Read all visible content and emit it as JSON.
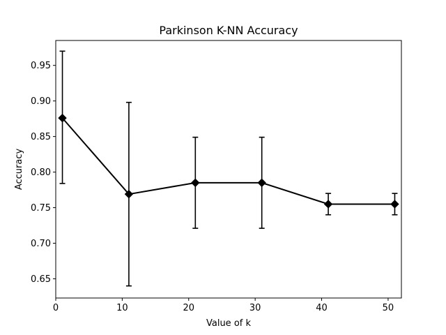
{
  "chart_data": {
    "type": "line",
    "title": "Parkinson K-NN Accuracy",
    "xlabel": "Value of k",
    "ylabel": "Accuracy",
    "xlim": [
      0,
      52
    ],
    "ylim": [
      0.623,
      0.985
    ],
    "xticks": [
      0,
      10,
      20,
      30,
      40,
      50
    ],
    "xtick_labels": [
      "0",
      "10",
      "20",
      "30",
      "40",
      "50"
    ],
    "yticks": [
      0.65,
      0.7,
      0.75,
      0.8,
      0.85,
      0.9,
      0.95
    ],
    "ytick_labels": [
      "0.65",
      "0.70",
      "0.75",
      "0.80",
      "0.85",
      "0.90",
      "0.95"
    ],
    "grid": false,
    "series": [
      {
        "marker": "diamond",
        "color": "#000000",
        "x": [
          1,
          11,
          21,
          31,
          41,
          51
        ],
        "y": [
          0.876,
          0.769,
          0.785,
          0.785,
          0.755,
          0.755
        ],
        "err_low": [
          0.784,
          0.64,
          0.721,
          0.721,
          0.74,
          0.74
        ],
        "err_high": [
          0.97,
          0.898,
          0.849,
          0.849,
          0.77,
          0.77
        ]
      }
    ]
  }
}
